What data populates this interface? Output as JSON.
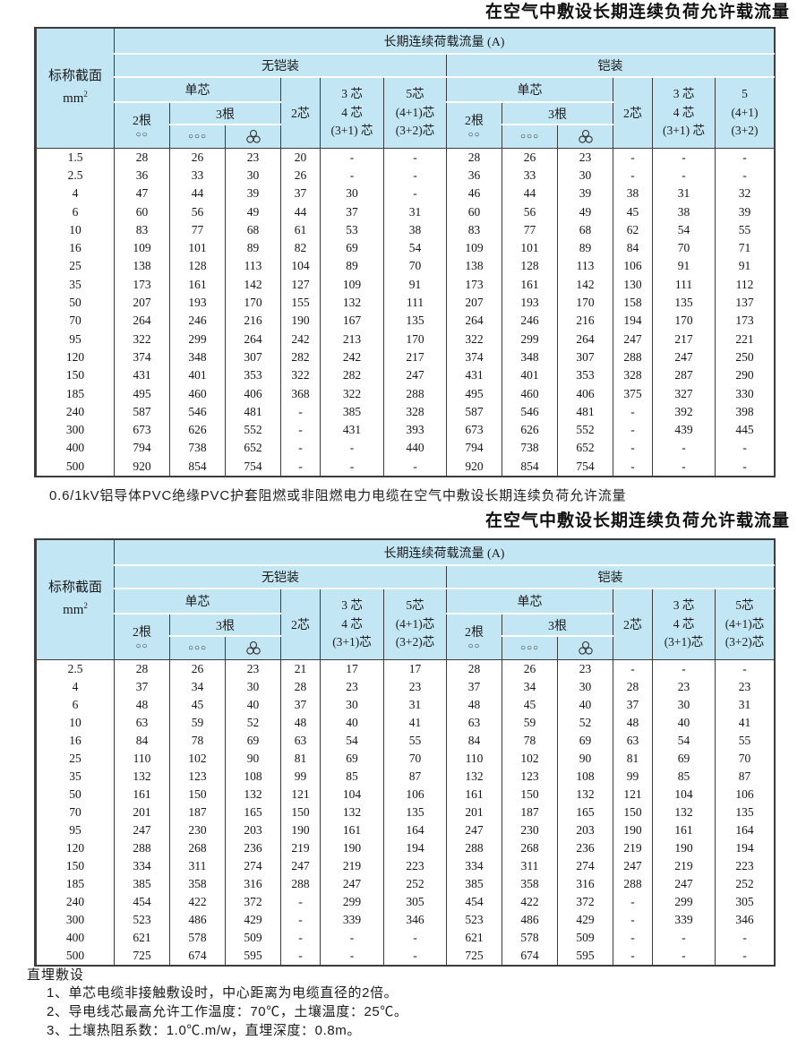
{
  "page": {
    "title_top": "在空气中敷设长期连续负荷允许载流量",
    "caption_middle": "0.6/1kV铝导体PVC绝缘PVC护套阻燃或非阻燃电力电缆在空气中敷设长期连续负荷允许流量",
    "title_middle": "在空气中敷设长期连续负荷允许载流量",
    "footer_heading": "直埋敷设",
    "footer_notes": [
      "1、单芯电缆非接触敷设时，中心距离为电缆直径的2倍。",
      "2、导电线芯最高允许工作温度：70℃，土壤温度：25℃。",
      "3、土壤热阻系数：1.0℃.m/w，直埋深度：0.8m。"
    ]
  },
  "colors": {
    "header_bg": "#c3e6f4",
    "border": "#3c3c3c"
  },
  "icons": {
    "two_circles": "○○",
    "three_circles_row": "○○○",
    "three_circles_triangle": "circles-triangle-icon"
  },
  "table1": {
    "header": {
      "area_line1": "标称截面",
      "area_unit_base": "mm",
      "area_unit_sup": "2",
      "load_title": "长期连续荷载流量 (A)",
      "unarmored": "无铠装",
      "armored": "铠装",
      "single_core": "单芯",
      "two_wires": "2根",
      "three_wires": "3根",
      "circles2": "○○",
      "circles3": "○○○",
      "two_core": "2芯",
      "mc345_u": [
        "3 芯",
        "4 芯",
        "(3+1) 芯"
      ],
      "mc5_u": [
        "5芯",
        "(4+1)芯",
        "(3+2)芯"
      ],
      "mc345_a": [
        "3 芯",
        "4 芯",
        "(3+1) 芯"
      ],
      "mc5_a": [
        "5",
        "(4+1)",
        "(3+2)"
      ]
    },
    "rows": [
      [
        "1.5",
        28,
        26,
        23,
        20,
        "-",
        "-",
        28,
        26,
        23,
        "-",
        "-",
        "-"
      ],
      [
        "2.5",
        36,
        33,
        30,
        26,
        "-",
        "-",
        36,
        33,
        30,
        "-",
        "-",
        "-"
      ],
      [
        "4",
        47,
        44,
        39,
        37,
        30,
        "-",
        46,
        44,
        39,
        38,
        31,
        32
      ],
      [
        "6",
        60,
        56,
        49,
        44,
        37,
        31,
        60,
        56,
        49,
        45,
        38,
        39
      ],
      [
        "10",
        83,
        77,
        68,
        61,
        53,
        38,
        83,
        77,
        68,
        62,
        54,
        55
      ],
      [
        "16",
        109,
        101,
        89,
        82,
        69,
        54,
        109,
        101,
        89,
        84,
        70,
        71
      ],
      [
        "25",
        138,
        128,
        113,
        104,
        89,
        70,
        138,
        128,
        113,
        106,
        91,
        91
      ],
      [
        "35",
        173,
        161,
        142,
        127,
        109,
        91,
        173,
        161,
        142,
        130,
        111,
        112
      ],
      [
        "50",
        207,
        193,
        170,
        155,
        132,
        111,
        207,
        193,
        170,
        158,
        135,
        137
      ],
      [
        "70",
        264,
        246,
        216,
        190,
        167,
        135,
        264,
        246,
        216,
        194,
        170,
        173
      ],
      [
        "95",
        322,
        299,
        264,
        242,
        213,
        170,
        322,
        299,
        264,
        247,
        217,
        221
      ],
      [
        "120",
        374,
        348,
        307,
        282,
        242,
        217,
        374,
        348,
        307,
        288,
        247,
        250
      ],
      [
        "150",
        431,
        401,
        353,
        322,
        282,
        247,
        431,
        401,
        353,
        328,
        287,
        290
      ],
      [
        "185",
        495,
        460,
        406,
        368,
        322,
        288,
        495,
        460,
        406,
        375,
        327,
        330
      ],
      [
        "240",
        587,
        546,
        481,
        "-",
        385,
        328,
        587,
        546,
        481,
        "-",
        392,
        398
      ],
      [
        "300",
        673,
        626,
        552,
        "-",
        431,
        393,
        673,
        626,
        552,
        "-",
        439,
        445
      ],
      [
        "400",
        794,
        738,
        652,
        "-",
        "-",
        440,
        794,
        738,
        652,
        "-",
        "-",
        "-"
      ],
      [
        "500",
        920,
        854,
        754,
        "-",
        "-",
        "-",
        920,
        854,
        754,
        "-",
        "-",
        "-"
      ]
    ]
  },
  "table2": {
    "header": {
      "area_line1": "标称截面",
      "area_unit_base": "mm",
      "area_unit_sup": "2",
      "load_title": "长期连续荷载流量 (A)",
      "unarmored": "无铠装",
      "armored": "铠装",
      "single_core": "单芯",
      "two_wires": "2根",
      "three_wires": "3根",
      "circles2": "○○",
      "circles3": "○○○",
      "two_core": "2芯",
      "mc345_u": [
        "3 芯",
        "4 芯",
        "(3+1)芯"
      ],
      "mc5_u": [
        "5芯",
        "(4+1)芯",
        "(3+2)芯"
      ],
      "mc345_a": [
        "3 芯",
        "4 芯",
        "(3+1)芯"
      ],
      "mc5_a": [
        "5芯",
        "(4+1)芯",
        "(3+2)芯"
      ]
    },
    "rows": [
      [
        "2.5",
        28,
        26,
        23,
        21,
        17,
        17,
        28,
        26,
        23,
        "-",
        "-",
        "-"
      ],
      [
        "4",
        37,
        34,
        30,
        28,
        23,
        23,
        37,
        34,
        30,
        28,
        23,
        23
      ],
      [
        "6",
        48,
        45,
        40,
        37,
        30,
        31,
        48,
        45,
        40,
        37,
        30,
        31
      ],
      [
        "10",
        63,
        59,
        52,
        48,
        40,
        41,
        63,
        59,
        52,
        48,
        40,
        41
      ],
      [
        "16",
        84,
        78,
        69,
        63,
        54,
        55,
        84,
        78,
        69,
        63,
        54,
        55
      ],
      [
        "25",
        110,
        102,
        90,
        81,
        69,
        70,
        110,
        102,
        90,
        81,
        69,
        70
      ],
      [
        "35",
        132,
        123,
        108,
        99,
        85,
        87,
        132,
        123,
        108,
        99,
        85,
        87
      ],
      [
        "50",
        161,
        150,
        132,
        121,
        104,
        106,
        161,
        150,
        132,
        121,
        104,
        106
      ],
      [
        "70",
        201,
        187,
        165,
        150,
        132,
        135,
        201,
        187,
        165,
        150,
        132,
        135
      ],
      [
        "95",
        247,
        230,
        203,
        190,
        161,
        164,
        247,
        230,
        203,
        190,
        161,
        164
      ],
      [
        "120",
        288,
        268,
        236,
        219,
        190,
        194,
        288,
        268,
        236,
        219,
        190,
        194
      ],
      [
        "150",
        334,
        311,
        274,
        247,
        219,
        223,
        334,
        311,
        274,
        247,
        219,
        223
      ],
      [
        "185",
        385,
        358,
        316,
        288,
        247,
        252,
        385,
        358,
        316,
        288,
        247,
        252
      ],
      [
        "240",
        454,
        422,
        372,
        "-",
        299,
        305,
        454,
        422,
        372,
        "-",
        299,
        305
      ],
      [
        "300",
        523,
        486,
        429,
        "-",
        339,
        346,
        523,
        486,
        429,
        "-",
        339,
        346
      ],
      [
        "400",
        621,
        578,
        509,
        "-",
        "-",
        "-",
        621,
        578,
        509,
        "-",
        "-",
        "-"
      ],
      [
        "500",
        725,
        674,
        595,
        "-",
        "-",
        "-",
        725,
        674,
        595,
        "-",
        "-",
        "-"
      ]
    ]
  }
}
